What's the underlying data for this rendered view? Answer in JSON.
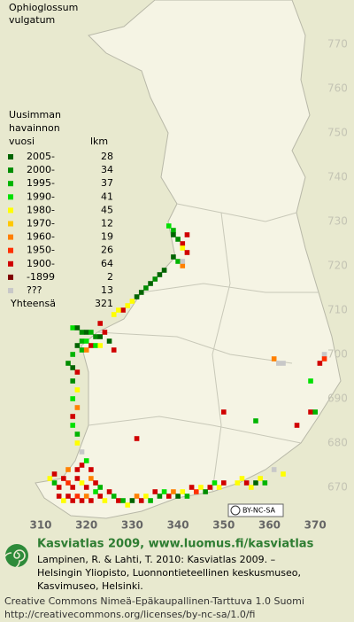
{
  "map": {
    "title_lines": [
      "Ophioglossum",
      "vulgatum"
    ],
    "legend": {
      "heading_lines": [
        "Uusimman",
        "havainnon",
        "vuosi"
      ],
      "count_heading": "lkm",
      "entries": [
        {
          "label": "2005-",
          "count": 28,
          "color": "#006400"
        },
        {
          "label": "2000-",
          "count": 34,
          "color": "#008c00"
        },
        {
          "label": "1995-",
          "count": 37,
          "color": "#00b400"
        },
        {
          "label": "1990-",
          "count": 41,
          "color": "#00e000"
        },
        {
          "label": "1980-",
          "count": 45,
          "color": "#ffff00"
        },
        {
          "label": "1970-",
          "count": 12,
          "color": "#ffc800"
        },
        {
          "label": "1960-",
          "count": 19,
          "color": "#ff8000"
        },
        {
          "label": "1950-",
          "count": 26,
          "color": "#ff3000"
        },
        {
          "label": "1900-",
          "count": 64,
          "color": "#d00000"
        },
        {
          "label": "-1899",
          "count": 2,
          "color": "#800000"
        },
        {
          "label": "???",
          "count": 13,
          "color": "#c8c8c8"
        }
      ],
      "total_label": "Yhteensä",
      "total": 321
    },
    "northing_ticks": [
      770,
      760,
      750,
      740,
      730,
      720,
      710,
      700,
      690,
      680,
      670
    ],
    "easting_ticks": [
      310,
      320,
      330,
      340,
      350,
      360,
      370
    ],
    "squares": [
      [
        338,
        729,
        3
      ],
      [
        339,
        728,
        2
      ],
      [
        339,
        727,
        0
      ],
      [
        340,
        726,
        1
      ],
      [
        341,
        725,
        8
      ],
      [
        342,
        727,
        8
      ],
      [
        341,
        724,
        4
      ],
      [
        339,
        722,
        0
      ],
      [
        340,
        721,
        2
      ],
      [
        341,
        720,
        6
      ],
      [
        342,
        723,
        8
      ],
      [
        341,
        721,
        10
      ],
      [
        337,
        719,
        0
      ],
      [
        336,
        718,
        0
      ],
      [
        335,
        717,
        1
      ],
      [
        334,
        716,
        0
      ],
      [
        333,
        715,
        1
      ],
      [
        332,
        714,
        0
      ],
      [
        331,
        713,
        0
      ],
      [
        330,
        712,
        4
      ],
      [
        329,
        711,
        4
      ],
      [
        328,
        710,
        8
      ],
      [
        327,
        710,
        4
      ],
      [
        326,
        709,
        4
      ],
      [
        323,
        707,
        8
      ],
      [
        317,
        706,
        3
      ],
      [
        318,
        706,
        0
      ],
      [
        319,
        705,
        1
      ],
      [
        320,
        705,
        0
      ],
      [
        321,
        705,
        2
      ],
      [
        322,
        704,
        1
      ],
      [
        323,
        704,
        0
      ],
      [
        324,
        705,
        8
      ],
      [
        319,
        703,
        2
      ],
      [
        320,
        703,
        3
      ],
      [
        318,
        702,
        0
      ],
      [
        319,
        701,
        2
      ],
      [
        320,
        701,
        6
      ],
      [
        321,
        702,
        8
      ],
      [
        322,
        702,
        3
      ],
      [
        323,
        702,
        4
      ],
      [
        325,
        703,
        0
      ],
      [
        326,
        701,
        8
      ],
      [
        317,
        700,
        2
      ],
      [
        316,
        698,
        1
      ],
      [
        317,
        697,
        0
      ],
      [
        318,
        696,
        8
      ],
      [
        317,
        694,
        1
      ],
      [
        318,
        692,
        4
      ],
      [
        317,
        690,
        3
      ],
      [
        318,
        688,
        6
      ],
      [
        317,
        686,
        8
      ],
      [
        317,
        684,
        3
      ],
      [
        318,
        682,
        2
      ],
      [
        319,
        678,
        10
      ],
      [
        318,
        680,
        4
      ],
      [
        361,
        699,
        6
      ],
      [
        362,
        698,
        10
      ],
      [
        363,
        698,
        10
      ],
      [
        372,
        700,
        10
      ],
      [
        372,
        699,
        7
      ],
      [
        371,
        698,
        8
      ],
      [
        369,
        694,
        3
      ],
      [
        369,
        687,
        8
      ],
      [
        370,
        687,
        2
      ],
      [
        366,
        684,
        8
      ],
      [
        357,
        685,
        2
      ],
      [
        350,
        687,
        8
      ],
      [
        331,
        681,
        8
      ],
      [
        361,
        674,
        10
      ],
      [
        363,
        673,
        4
      ],
      [
        312,
        672,
        4
      ],
      [
        313,
        671,
        2
      ],
      [
        314,
        670,
        8
      ],
      [
        315,
        672,
        8
      ],
      [
        316,
        671,
        7
      ],
      [
        317,
        670,
        8
      ],
      [
        318,
        672,
        8
      ],
      [
        319,
        671,
        4
      ],
      [
        320,
        670,
        8
      ],
      [
        321,
        672,
        6
      ],
      [
        322,
        671,
        8
      ],
      [
        323,
        670,
        2
      ],
      [
        314,
        668,
        8
      ],
      [
        315,
        667,
        4
      ],
      [
        316,
        668,
        8
      ],
      [
        317,
        667,
        8
      ],
      [
        318,
        668,
        7
      ],
      [
        319,
        667,
        8
      ],
      [
        320,
        668,
        6
      ],
      [
        321,
        667,
        8
      ],
      [
        322,
        669,
        3
      ],
      [
        323,
        668,
        8
      ],
      [
        324,
        667,
        4
      ],
      [
        325,
        669,
        8
      ],
      [
        326,
        668,
        2
      ],
      [
        327,
        667,
        8
      ],
      [
        318,
        674,
        8
      ],
      [
        319,
        675,
        8
      ],
      [
        320,
        676,
        3
      ],
      [
        321,
        674,
        8
      ],
      [
        313,
        673,
        8
      ],
      [
        316,
        674,
        6
      ],
      [
        328,
        667,
        2
      ],
      [
        329,
        666,
        4
      ],
      [
        330,
        667,
        0
      ],
      [
        331,
        668,
        6
      ],
      [
        332,
        667,
        8
      ],
      [
        333,
        668,
        4
      ],
      [
        334,
        667,
        2
      ],
      [
        335,
        669,
        8
      ],
      [
        336,
        668,
        1
      ],
      [
        337,
        669,
        3
      ],
      [
        338,
        668,
        8
      ],
      [
        339,
        669,
        6
      ],
      [
        340,
        668,
        0
      ],
      [
        341,
        669,
        4
      ],
      [
        342,
        668,
        2
      ],
      [
        343,
        670,
        8
      ],
      [
        344,
        669,
        7
      ],
      [
        345,
        670,
        4
      ],
      [
        346,
        669,
        1
      ],
      [
        347,
        670,
        8
      ],
      [
        348,
        671,
        3
      ],
      [
        349,
        670,
        4
      ],
      [
        350,
        671,
        8
      ],
      [
        353,
        671,
        4
      ],
      [
        354,
        672,
        4
      ],
      [
        355,
        671,
        8
      ],
      [
        356,
        670,
        4
      ],
      [
        357,
        671,
        0
      ],
      [
        358,
        672,
        4
      ],
      [
        359,
        671,
        2
      ]
    ],
    "footer": {
      "headline": "Kasviatlas 2009, www.luomus.fi/kasviatlas",
      "citation_lines": [
        "Lampinen, R. & Lahti, T. 2010: Kasviatlas 2009. –",
        "Helsingin Yliopisto, Luonnontieteellinen keskusmuseo,",
        "Kasvimuseo, Helsinki."
      ],
      "license_lines": [
        "Creative Commons Nimeä-Epäkaupallinen-Tarttuva 1.0 Suomi",
        "http://creativecommons.org/licenses/by-nc-sa/1.0/fi"
      ],
      "badge": "BY-NC-SA"
    }
  }
}
